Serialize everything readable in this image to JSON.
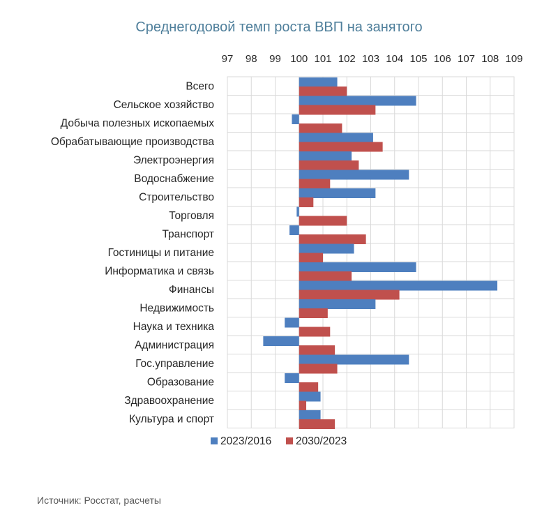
{
  "chart_data": {
    "type": "bar",
    "orientation": "horizontal",
    "title": "Среднегодовой темп роста ВВП на занятого",
    "xlabel": "",
    "ylabel": "",
    "xlim": [
      97,
      109
    ],
    "xticks": [
      97,
      98,
      99,
      100,
      101,
      102,
      103,
      104,
      105,
      106,
      107,
      108,
      109
    ],
    "grid": true,
    "legend_position": "bottom",
    "categories": [
      "Всего",
      "Сельское хозяйство",
      "Добыча полезных ископаемых",
      "Обрабатывающие производства",
      "Электроэнергия",
      "Водоснабжение",
      "Строительство",
      "Торговля",
      "Транспорт",
      "Гостиницы и питание",
      "Информатика и связь",
      "Финансы",
      "Недвижимость",
      "Наука и техника",
      "Администрация",
      "Гос.управление",
      "Образование",
      "Здравоохранение",
      "Культура и спорт"
    ],
    "series": [
      {
        "name": "2023/2016",
        "color": "#4e7fbf",
        "values": [
          101.6,
          104.9,
          99.7,
          103.1,
          102.2,
          104.6,
          103.2,
          99.9,
          99.6,
          102.3,
          104.9,
          108.3,
          103.2,
          99.4,
          98.5,
          104.6,
          99.4,
          100.9,
          100.9
        ]
      },
      {
        "name": "2030/2023",
        "color": "#c0504d",
        "values": [
          102.0,
          103.2,
          101.8,
          103.5,
          102.5,
          101.3,
          100.6,
          102.0,
          102.8,
          101.0,
          102.2,
          104.2,
          101.2,
          101.3,
          101.5,
          101.6,
          100.8,
          100.3,
          101.5
        ]
      }
    ]
  },
  "source": "Источник: Росстат, расчеты"
}
